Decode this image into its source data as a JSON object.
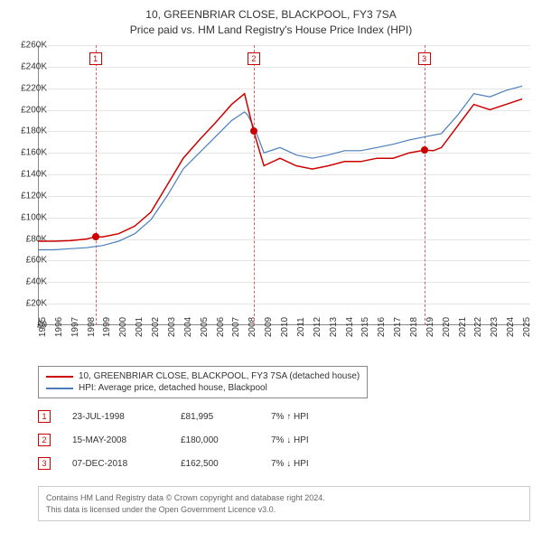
{
  "title_line1": "10, GREENBRIAR CLOSE, BLACKPOOL, FY3 7SA",
  "title_line2": "Price paid vs. HM Land Registry's House Price Index (HPI)",
  "chart": {
    "type": "line",
    "background_color": "#ffffff",
    "grid_color": "#cccccc",
    "axis_color": "#888888",
    "text_color": "#333333",
    "ylim": [
      0,
      260000
    ],
    "ytick_step": 20000,
    "yticks": [
      "£0",
      "£20K",
      "£40K",
      "£60K",
      "£80K",
      "£100K",
      "£120K",
      "£140K",
      "£160K",
      "£180K",
      "£200K",
      "£220K",
      "£240K",
      "£260K"
    ],
    "xlim": [
      1995,
      2025.5
    ],
    "xticks": [
      1995,
      1996,
      1997,
      1998,
      1999,
      2000,
      2001,
      2002,
      2003,
      2004,
      2005,
      2006,
      2007,
      2008,
      2009,
      2010,
      2011,
      2012,
      2013,
      2014,
      2015,
      2016,
      2017,
      2018,
      2019,
      2020,
      2021,
      2022,
      2023,
      2024,
      2025
    ],
    "series": [
      {
        "name": "10, GREENBRIAR CLOSE, BLACKPOOL, FY3 7SA (detached house)",
        "color": "#cc0000",
        "line_width": 1.5,
        "data": [
          [
            1995,
            78000
          ],
          [
            1996,
            78000
          ],
          [
            1997,
            78500
          ],
          [
            1998,
            80000
          ],
          [
            1998.56,
            81995
          ],
          [
            1999,
            82000
          ],
          [
            2000,
            85000
          ],
          [
            2001,
            92000
          ],
          [
            2002,
            105000
          ],
          [
            2003,
            130000
          ],
          [
            2004,
            155000
          ],
          [
            2005,
            172000
          ],
          [
            2006,
            188000
          ],
          [
            2007,
            205000
          ],
          [
            2007.8,
            215000
          ],
          [
            2008.37,
            180000
          ],
          [
            2008.8,
            158000
          ],
          [
            2009,
            148000
          ],
          [
            2010,
            155000
          ],
          [
            2011,
            148000
          ],
          [
            2012,
            145000
          ],
          [
            2013,
            148000
          ],
          [
            2014,
            152000
          ],
          [
            2015,
            152000
          ],
          [
            2016,
            155000
          ],
          [
            2017,
            155000
          ],
          [
            2018,
            160000
          ],
          [
            2018.93,
            162500
          ],
          [
            2019.5,
            162000
          ],
          [
            2020,
            165000
          ],
          [
            2021,
            185000
          ],
          [
            2022,
            205000
          ],
          [
            2023,
            200000
          ],
          [
            2024,
            205000
          ],
          [
            2025,
            210000
          ]
        ]
      },
      {
        "name": "HPI: Average price, detached house, Blackpool",
        "color": "#4a7ebb",
        "line_width": 1.2,
        "data": [
          [
            1995,
            70000
          ],
          [
            1996,
            70000
          ],
          [
            1997,
            71000
          ],
          [
            1998,
            72000
          ],
          [
            1999,
            74000
          ],
          [
            2000,
            78000
          ],
          [
            2001,
            85000
          ],
          [
            2002,
            98000
          ],
          [
            2003,
            120000
          ],
          [
            2004,
            145000
          ],
          [
            2005,
            160000
          ],
          [
            2006,
            175000
          ],
          [
            2007,
            190000
          ],
          [
            2007.8,
            198000
          ],
          [
            2008,
            195000
          ],
          [
            2008.5,
            180000
          ],
          [
            2009,
            160000
          ],
          [
            2010,
            165000
          ],
          [
            2011,
            158000
          ],
          [
            2012,
            155000
          ],
          [
            2013,
            158000
          ],
          [
            2014,
            162000
          ],
          [
            2015,
            162000
          ],
          [
            2016,
            165000
          ],
          [
            2017,
            168000
          ],
          [
            2018,
            172000
          ],
          [
            2019,
            175000
          ],
          [
            2020,
            178000
          ],
          [
            2021,
            195000
          ],
          [
            2022,
            215000
          ],
          [
            2023,
            212000
          ],
          [
            2024,
            218000
          ],
          [
            2025,
            222000
          ]
        ]
      }
    ],
    "markers": [
      {
        "n": "1",
        "year": 1998.56,
        "color": "#cc0000",
        "dash_color": "#cc6666",
        "dot_y": 81995
      },
      {
        "n": "2",
        "year": 2008.37,
        "color": "#cc0000",
        "dash_color": "#cc6666",
        "dot_y": 180000
      },
      {
        "n": "3",
        "year": 2018.93,
        "color": "#cc0000",
        "dash_color": "#cc6666",
        "dot_y": 162500
      }
    ]
  },
  "legend": {
    "items": [
      {
        "color": "#cc0000",
        "label": "10, GREENBRIAR CLOSE, BLACKPOOL, FY3 7SA (detached house)"
      },
      {
        "color": "#4a7ebb",
        "label": "HPI: Average price, detached house, Blackpool"
      }
    ]
  },
  "sales": [
    {
      "n": "1",
      "date": "23-JUL-1998",
      "price": "£81,995",
      "hpi": "7% ↑ HPI"
    },
    {
      "n": "2",
      "date": "15-MAY-2008",
      "price": "£180,000",
      "hpi": "7% ↓ HPI"
    },
    {
      "n": "3",
      "date": "07-DEC-2018",
      "price": "£162,500",
      "hpi": "7% ↓ HPI"
    }
  ],
  "footer_line1": "Contains HM Land Registry data © Crown copyright and database right 2024.",
  "footer_line2": "This data is licensed under the Open Government Licence v3.0."
}
